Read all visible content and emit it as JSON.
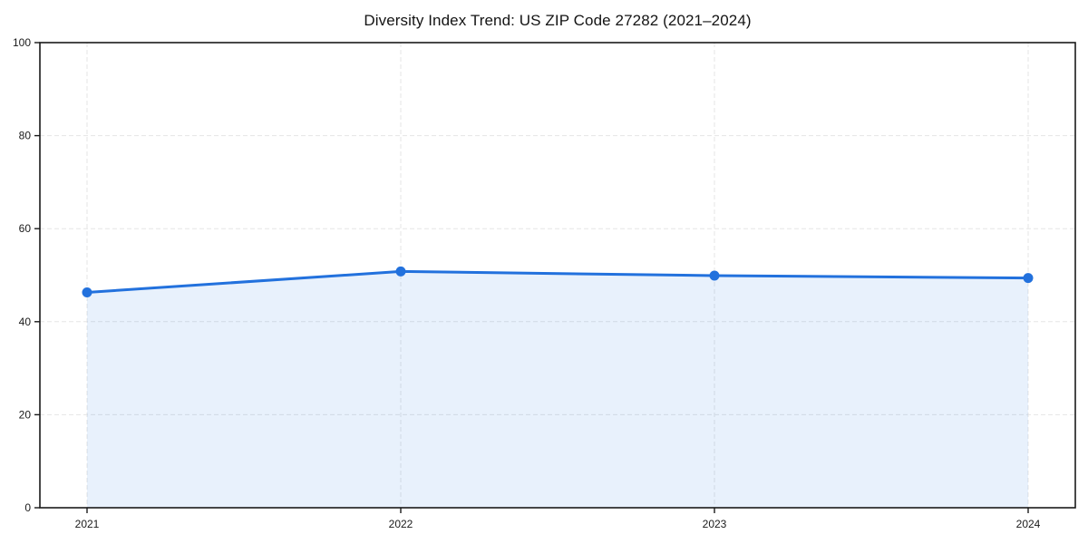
{
  "chart_data": {
    "type": "area",
    "title": "Diversity Index Trend: US ZIP Code 27282 (2021–2024)",
    "categories": [
      "2021",
      "2022",
      "2023",
      "2024"
    ],
    "series": [
      {
        "name": "Diversity Index",
        "values": [
          46.3,
          50.8,
          49.9,
          49.4
        ]
      }
    ],
    "xlabel": "",
    "ylabel": "",
    "ylim": [
      0,
      100
    ],
    "yticks": [
      0,
      20,
      40,
      60,
      80,
      100
    ],
    "grid": "dashed-both-axes",
    "legend": "none",
    "marker": "circle",
    "colors": {
      "line": "#2271dd",
      "marker": "#2271dd",
      "fill": "#2271dd",
      "fill_opacity": "0.10",
      "grid": "#e5e5e5",
      "spine": "#1a1a1a",
      "tick_label": "#1a1a1a",
      "background": "#ffffff"
    }
  }
}
